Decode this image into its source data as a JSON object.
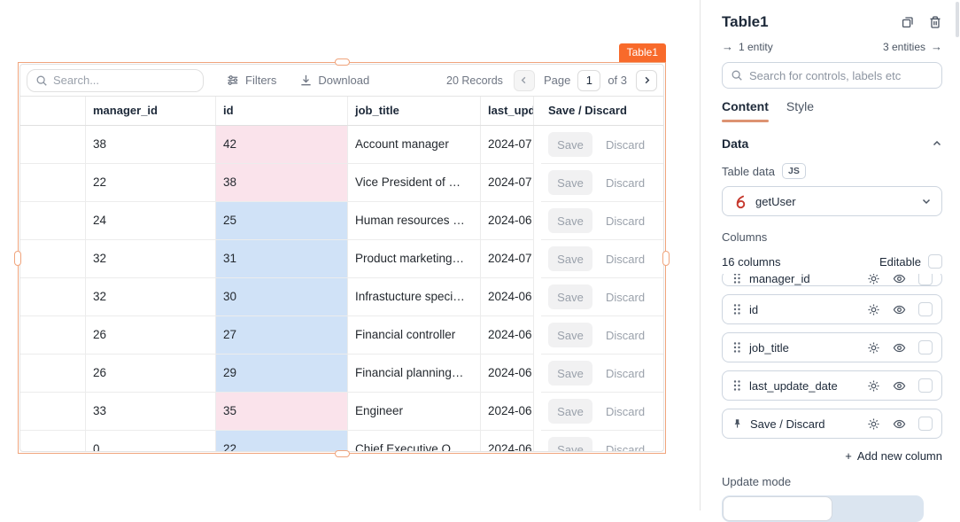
{
  "colors": {
    "accent": "#f86a2b",
    "selection_border": "#f0a47c",
    "id_cell_pink": "#fae3eb",
    "id_cell_blue": "#d0e2f7",
    "query_icon_red": "#c63a2f"
  },
  "icons": {
    "toolbar": [
      "search-icon",
      "filters-mixer-icon",
      "download-icon",
      "chevron-left-icon",
      "chevron-right-icon"
    ],
    "panel": [
      "copy-icon",
      "trash-icon",
      "arrow-right-icon",
      "search-icon",
      "chevron-up-icon",
      "js-badge",
      "query-icon",
      "chevron-down-icon",
      "drag-handle-icon",
      "gear-icon",
      "eye-icon",
      "pin-icon",
      "plus-icon",
      "checkbox"
    ]
  },
  "widget": {
    "badge": "Table1",
    "toolbar": {
      "search_placeholder": "Search...",
      "filters_label": "Filters",
      "download_label": "Download",
      "records_text": "20 Records",
      "page_label": "Page",
      "page_value": "1",
      "page_total": "of 3"
    },
    "table": {
      "headers": [
        "",
        "manager_id",
        "id",
        "job_title",
        "last_update_date",
        "Save / Discard"
      ],
      "save_label": "Save",
      "discard_label": "Discard",
      "id_cell_colors": {
        "pink": "#fae3eb",
        "blue": "#d0e2f7"
      },
      "rows": [
        {
          "manager_id": "38",
          "id": "42",
          "id_color": "pink",
          "job_title": "Account manager",
          "last_update": "2024-07"
        },
        {
          "manager_id": "22",
          "id": "38",
          "id_color": "pink",
          "job_title": "Vice President of …",
          "last_update": "2024-07"
        },
        {
          "manager_id": "24",
          "id": "25",
          "id_color": "blue",
          "job_title": "Human resources …",
          "last_update": "2024-06"
        },
        {
          "manager_id": "32",
          "id": "31",
          "id_color": "blue",
          "job_title": "Product marketing…",
          "last_update": "2024-07"
        },
        {
          "manager_id": "32",
          "id": "30",
          "id_color": "blue",
          "job_title": "Infrastucture speci…",
          "last_update": "2024-06"
        },
        {
          "manager_id": "26",
          "id": "27",
          "id_color": "blue",
          "job_title": "Financial controller",
          "last_update": "2024-06"
        },
        {
          "manager_id": "26",
          "id": "29",
          "id_color": "blue",
          "job_title": "Financial planning…",
          "last_update": "2024-06"
        },
        {
          "manager_id": "33",
          "id": "35",
          "id_color": "pink",
          "job_title": "Engineer",
          "last_update": "2024-06"
        },
        {
          "manager_id": "0",
          "id": "22",
          "id_color": "blue",
          "job_title": "Chief Executive O…",
          "last_update": "2024-06"
        }
      ]
    }
  },
  "panel": {
    "title": "Table1",
    "incoming_entities": "1 entity",
    "outgoing_entities": "3 entities",
    "search_placeholder": "Search for controls, labels etc",
    "tabs": {
      "content": "Content",
      "style": "Style"
    },
    "data_section": {
      "title": "Data",
      "table_data_label": "Table data",
      "js_badge": "JS",
      "datasource_value": "getUser"
    },
    "columns": {
      "section_label": "Columns",
      "count_text": "16 columns",
      "editable_label": "Editable",
      "items": [
        {
          "label": "manager_id",
          "partial": true
        },
        {
          "label": "id"
        },
        {
          "label": "job_title"
        },
        {
          "label": "last_update_date"
        },
        {
          "label": "Save / Discard",
          "pinned": true
        }
      ],
      "add_new_label": "Add new column"
    },
    "update_mode_label": "Update mode"
  }
}
